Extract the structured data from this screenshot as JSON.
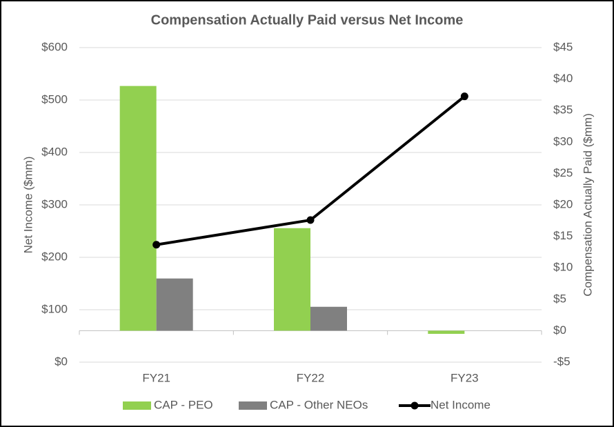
{
  "chart_data": {
    "type": "bar-line",
    "title": "Compensation Actually Paid versus Net Income",
    "y_label": "Net Income ($mm)",
    "y2_label": "Compensation Actually Paid ($mm)",
    "categories": [
      "FY21",
      "FY22",
      "FY23"
    ],
    "series": [
      {
        "name": "CAP - PEO",
        "type": "bar",
        "axis": "y2",
        "color": "#92d050",
        "values": [
          38.9,
          16.3,
          -0.5
        ]
      },
      {
        "name": "CAP - Other NEOs",
        "type": "bar",
        "axis": "y2",
        "color": "#808080",
        "values": [
          8.3,
          3.8,
          0
        ]
      },
      {
        "name": "Net Income",
        "type": "line",
        "axis": "y",
        "color": "#000000",
        "values": [
          224,
          271,
          507
        ]
      }
    ],
    "ylim": [
      0,
      600
    ],
    "yticks": [
      {
        "value": 0,
        "label": "$0"
      },
      {
        "value": 100,
        "label": "$100"
      },
      {
        "value": 200,
        "label": "$200"
      },
      {
        "value": 300,
        "label": "$300"
      },
      {
        "value": 400,
        "label": "$400"
      },
      {
        "value": 500,
        "label": "$500"
      },
      {
        "value": 600,
        "label": "$600"
      }
    ],
    "y2lim": [
      -5,
      45
    ],
    "y2ticks": [
      {
        "value": -5,
        "label": "-$5"
      },
      {
        "value": 0,
        "label": "$0"
      },
      {
        "value": 5,
        "label": "$5"
      },
      {
        "value": 10,
        "label": "$10"
      },
      {
        "value": 15,
        "label": "$15"
      },
      {
        "value": 20,
        "label": "$20"
      },
      {
        "value": 25,
        "label": "$25"
      },
      {
        "value": 30,
        "label": "$30"
      },
      {
        "value": 35,
        "label": "$35"
      },
      {
        "value": 40,
        "label": "$40"
      },
      {
        "value": 45,
        "label": "$45"
      }
    ],
    "grid": true,
    "legend": "bottom"
  }
}
